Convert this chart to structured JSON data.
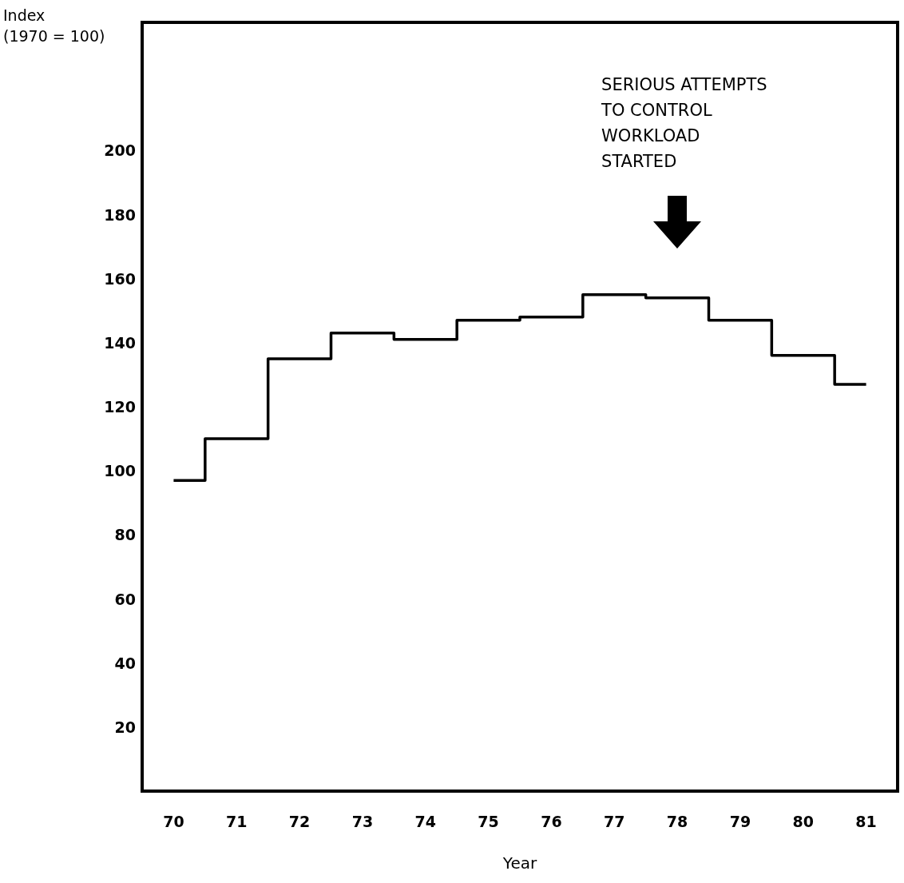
{
  "chart_data": {
    "type": "step",
    "ylabel": "Index\n(1970 = 100)",
    "xlabel": "Year",
    "categories": [
      "70",
      "71",
      "72",
      "73",
      "74",
      "75",
      "76",
      "77",
      "78",
      "79",
      "80",
      "81"
    ],
    "series": [
      {
        "color": "#000000",
        "values": [
          97,
          110,
          135,
          143,
          141,
          147,
          148,
          155,
          154,
          147,
          136,
          127
        ]
      }
    ],
    "ylim": [
      0,
      240
    ],
    "yticks": [
      20,
      40,
      60,
      80,
      100,
      120,
      140,
      160,
      180,
      200
    ],
    "grid": false,
    "annotations": [
      "SERIOUS ATTEMPTS\nTO CONTROL\nWORKLOAD\nSTARTED"
    ]
  }
}
